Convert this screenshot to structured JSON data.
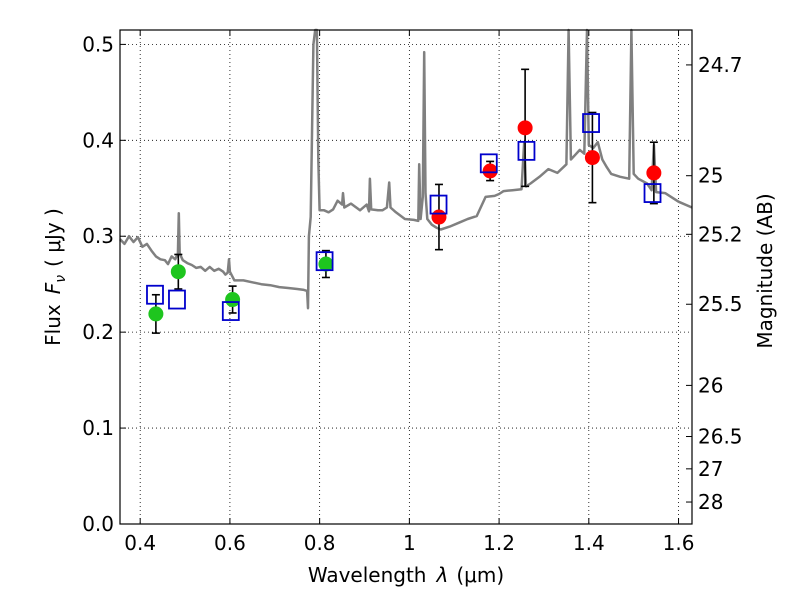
{
  "chart_data": {
    "type": "scatter",
    "xlabel_text": "Wavelength",
    "xlabel_symbol": "λ",
    "xlabel_unit": "(μm)",
    "ylabel_text": "Flux",
    "ylabel_symbol": "F",
    "ylabel_subscript": "ν",
    "ylabel_unit": "( μJy )",
    "y2label": "Magnitude (AB)",
    "xlim": [
      0.355,
      1.63
    ],
    "ylim": [
      0.0,
      0.515
    ],
    "grid": true,
    "x_ticks": [
      0.4,
      0.6,
      0.8,
      1.0,
      1.2,
      1.4,
      1.6
    ],
    "x_tick_labels": [
      "0.4",
      "0.6",
      "0.8",
      "1",
      "1.2",
      "1.4",
      "1.6"
    ],
    "y_ticks": [
      0.0,
      0.1,
      0.2,
      0.3,
      0.4,
      0.5
    ],
    "y_tick_labels": [
      "0.0",
      "0.1",
      "0.2",
      "0.3",
      "0.4",
      "0.5"
    ],
    "y2_ticks": [
      {
        "label": "24.7",
        "flux": 0.4786
      },
      {
        "label": "25",
        "flux": 0.3631
      },
      {
        "label": "25.2",
        "flux": 0.302
      },
      {
        "label": "25.5",
        "flux": 0.2291
      },
      {
        "label": "26",
        "flux": 0.1445
      },
      {
        "label": "26.5",
        "flux": 0.0912
      },
      {
        "label": "27",
        "flux": 0.0575
      },
      {
        "label": "28",
        "flux": 0.0229
      }
    ],
    "series": [
      {
        "marker": "circle",
        "color": "#1ec51e",
        "points": [
          {
            "x": 0.435,
            "y": 0.219,
            "err": 0.02
          },
          {
            "x": 0.485,
            "y": 0.263,
            "err": 0.018
          },
          {
            "x": 0.606,
            "y": 0.234,
            "err": 0.014
          },
          {
            "x": 0.814,
            "y": 0.271,
            "err": 0.014
          }
        ]
      },
      {
        "marker": "circle",
        "color": "#ff0000",
        "points": [
          {
            "x": 1.066,
            "y": 0.32,
            "err": 0.034
          },
          {
            "x": 1.18,
            "y": 0.368,
            "err": 0.01
          },
          {
            "x": 1.258,
            "y": 0.413,
            "err": 0.061
          },
          {
            "x": 1.408,
            "y": 0.382,
            "err": 0.047
          },
          {
            "x": 1.545,
            "y": 0.366,
            "err": 0.032
          }
        ]
      },
      {
        "marker": "open-square",
        "color": "#0000cc",
        "points": [
          {
            "x": 0.433,
            "y": 0.239
          },
          {
            "x": 0.482,
            "y": 0.234
          },
          {
            "x": 0.602,
            "y": 0.222
          },
          {
            "x": 0.811,
            "y": 0.274
          },
          {
            "x": 1.065,
            "y": 0.333
          },
          {
            "x": 1.177,
            "y": 0.376
          },
          {
            "x": 1.261,
            "y": 0.389
          },
          {
            "x": 1.405,
            "y": 0.418
          },
          {
            "x": 1.542,
            "y": 0.345
          }
        ]
      }
    ],
    "model_spectrum": {
      "color": "#808080",
      "points": [
        [
          0.355,
          0.297
        ],
        [
          0.365,
          0.292
        ],
        [
          0.375,
          0.3
        ],
        [
          0.385,
          0.294
        ],
        [
          0.395,
          0.299
        ],
        [
          0.405,
          0.289
        ],
        [
          0.415,
          0.292
        ],
        [
          0.425,
          0.285
        ],
        [
          0.435,
          0.279
        ],
        [
          0.445,
          0.276
        ],
        [
          0.455,
          0.275
        ],
        [
          0.462,
          0.271
        ],
        [
          0.47,
          0.279
        ],
        [
          0.478,
          0.276
        ],
        [
          0.484,
          0.282
        ],
        [
          0.486,
          0.324
        ],
        [
          0.488,
          0.282
        ],
        [
          0.495,
          0.275
        ],
        [
          0.505,
          0.272
        ],
        [
          0.515,
          0.27
        ],
        [
          0.525,
          0.267
        ],
        [
          0.535,
          0.268
        ],
        [
          0.545,
          0.264
        ],
        [
          0.555,
          0.268
        ],
        [
          0.565,
          0.264
        ],
        [
          0.575,
          0.266
        ],
        [
          0.585,
          0.263
        ],
        [
          0.59,
          0.26
        ],
        [
          0.595,
          0.262
        ],
        [
          0.598,
          0.276
        ],
        [
          0.6,
          0.263
        ],
        [
          0.61,
          0.254
        ],
        [
          0.63,
          0.254
        ],
        [
          0.65,
          0.252
        ],
        [
          0.67,
          0.25
        ],
        [
          0.69,
          0.249
        ],
        [
          0.71,
          0.247
        ],
        [
          0.73,
          0.246
        ],
        [
          0.75,
          0.245
        ],
        [
          0.765,
          0.244
        ],
        [
          0.772,
          0.243
        ],
        [
          0.774,
          0.225
        ],
        [
          0.776,
          0.3
        ],
        [
          0.78,
          0.32
        ],
        [
          0.786,
          0.5
        ],
        [
          0.79,
          0.515
        ],
        [
          0.794,
          0.515
        ],
        [
          0.797,
          0.38
        ],
        [
          0.8,
          0.327
        ],
        [
          0.81,
          0.327
        ],
        [
          0.82,
          0.325
        ],
        [
          0.83,
          0.328
        ],
        [
          0.84,
          0.337
        ],
        [
          0.85,
          0.333
        ],
        [
          0.852,
          0.345
        ],
        [
          0.855,
          0.33
        ],
        [
          0.87,
          0.334
        ],
        [
          0.89,
          0.327
        ],
        [
          0.905,
          0.333
        ],
        [
          0.91,
          0.326
        ],
        [
          0.912,
          0.36
        ],
        [
          0.915,
          0.328
        ],
        [
          0.93,
          0.327
        ],
        [
          0.94,
          0.327
        ],
        [
          0.95,
          0.33
        ],
        [
          0.955,
          0.356
        ],
        [
          0.958,
          0.33
        ],
        [
          0.97,
          0.325
        ],
        [
          0.99,
          0.318
        ],
        [
          1.01,
          0.317
        ],
        [
          1.02,
          0.316
        ],
        [
          1.022,
          0.375
        ],
        [
          1.025,
          0.318
        ],
        [
          1.03,
          0.341
        ],
        [
          1.033,
          0.492
        ],
        [
          1.036,
          0.345
        ],
        [
          1.04,
          0.318
        ],
        [
          1.05,
          0.312
        ],
        [
          1.06,
          0.309
        ],
        [
          1.07,
          0.307
        ],
        [
          1.09,
          0.31
        ],
        [
          1.11,
          0.314
        ],
        [
          1.13,
          0.318
        ],
        [
          1.15,
          0.321
        ],
        [
          1.17,
          0.341
        ],
        [
          1.19,
          0.342
        ],
        [
          1.2,
          0.344
        ],
        [
          1.21,
          0.347
        ],
        [
          1.23,
          0.348
        ],
        [
          1.25,
          0.349
        ],
        [
          1.256,
          0.398
        ],
        [
          1.26,
          0.352
        ],
        [
          1.27,
          0.355
        ],
        [
          1.29,
          0.362
        ],
        [
          1.31,
          0.37
        ],
        [
          1.33,
          0.366
        ],
        [
          1.35,
          0.375
        ],
        [
          1.355,
          0.515
        ],
        [
          1.36,
          0.38
        ],
        [
          1.37,
          0.385
        ],
        [
          1.38,
          0.39
        ],
        [
          1.39,
          0.386
        ],
        [
          1.396,
          0.515
        ],
        [
          1.4,
          0.395
        ],
        [
          1.41,
          0.392
        ],
        [
          1.42,
          0.398
        ],
        [
          1.43,
          0.38
        ],
        [
          1.44,
          0.372
        ],
        [
          1.45,
          0.365
        ],
        [
          1.47,
          0.362
        ],
        [
          1.49,
          0.36
        ],
        [
          1.495,
          0.515
        ],
        [
          1.5,
          0.365
        ],
        [
          1.51,
          0.36
        ],
        [
          1.53,
          0.355
        ],
        [
          1.54,
          0.348
        ],
        [
          1.545,
          0.395
        ],
        [
          1.55,
          0.346
        ],
        [
          1.57,
          0.345
        ],
        [
          1.6,
          0.336
        ],
        [
          1.63,
          0.33
        ]
      ]
    }
  }
}
